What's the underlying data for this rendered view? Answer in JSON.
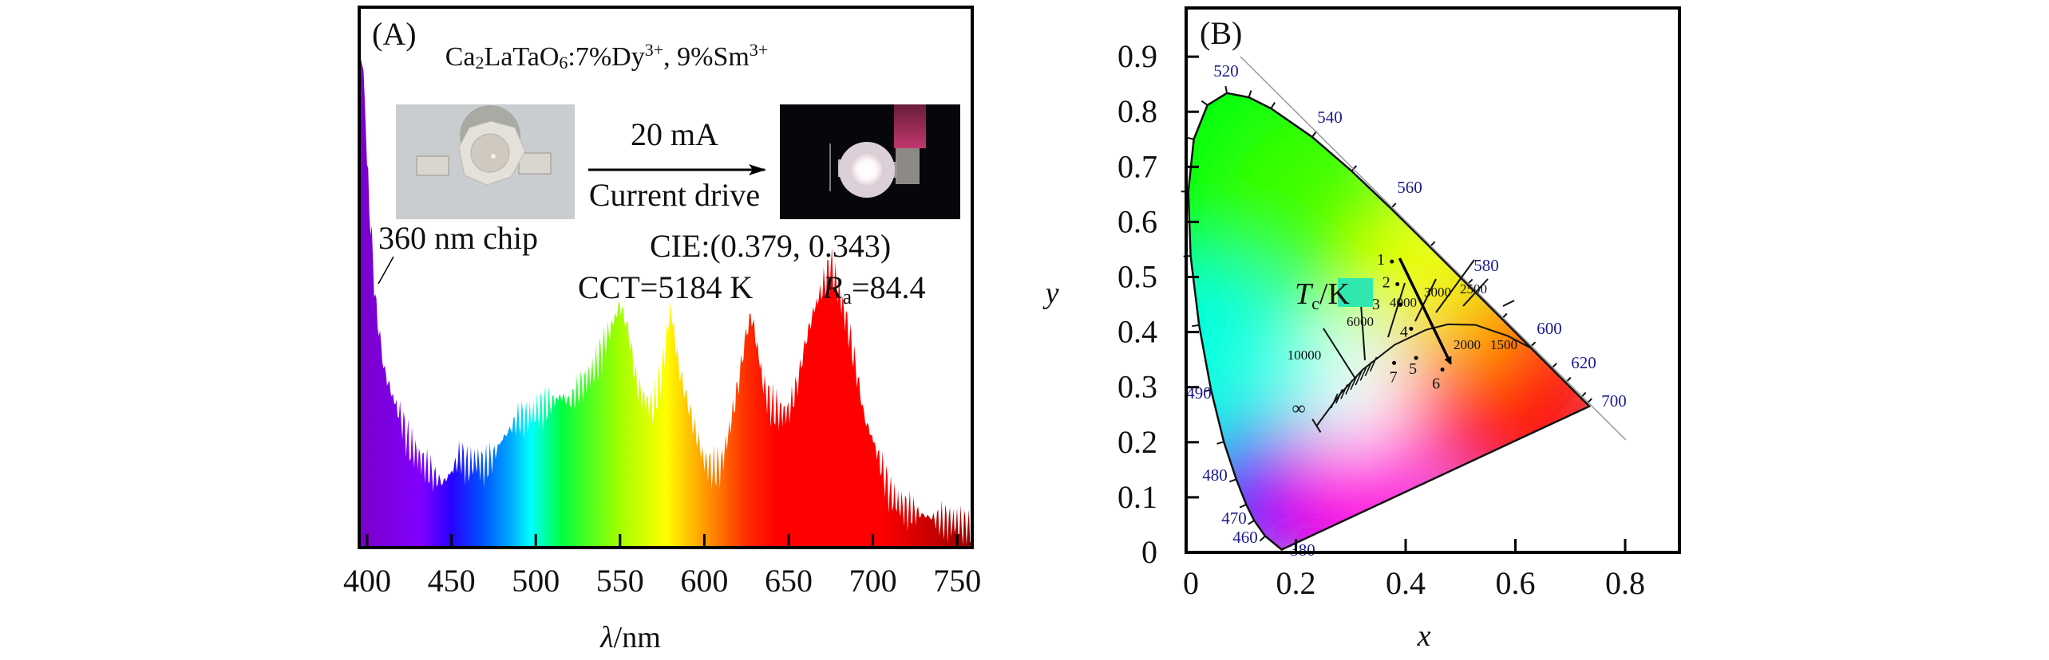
{
  "chart_data": [
    {
      "type": "area",
      "panel_label": "(A)",
      "title_parts": [
        "Ca",
        "2",
        "LaTaO",
        "6",
        ":7%Dy",
        "3+",
        ", 9%Sm",
        "3+"
      ],
      "xlabel_symbol": "λ",
      "xlabel_unit": "/nm",
      "ylabel": "",
      "xlim": [
        395,
        759
      ],
      "ylim": [
        0,
        1
      ],
      "xticks": [
        "400",
        "450",
        "500",
        "550",
        "600",
        "650",
        "700",
        "750"
      ],
      "x": [
        395,
        398,
        400,
        403,
        405,
        410,
        415,
        420,
        425,
        430,
        435,
        440,
        445,
        450,
        455,
        460,
        465,
        470,
        475,
        480,
        485,
        490,
        495,
        500,
        505,
        510,
        515,
        520,
        525,
        530,
        535,
        540,
        545,
        550,
        555,
        560,
        565,
        570,
        575,
        580,
        585,
        590,
        595,
        600,
        605,
        610,
        615,
        620,
        625,
        628,
        632,
        635,
        640,
        645,
        650,
        655,
        660,
        665,
        670,
        675,
        680,
        685,
        690,
        695,
        700,
        705,
        710,
        715,
        720,
        730,
        740,
        750,
        759
      ],
      "y": [
        0.92,
        0.88,
        0.7,
        0.55,
        0.45,
        0.33,
        0.28,
        0.24,
        0.19,
        0.17,
        0.15,
        0.13,
        0.12,
        0.14,
        0.17,
        0.15,
        0.16,
        0.15,
        0.17,
        0.2,
        0.22,
        0.24,
        0.24,
        0.25,
        0.26,
        0.27,
        0.28,
        0.27,
        0.29,
        0.31,
        0.33,
        0.37,
        0.41,
        0.45,
        0.4,
        0.3,
        0.27,
        0.26,
        0.33,
        0.445,
        0.33,
        0.27,
        0.21,
        0.16,
        0.145,
        0.15,
        0.22,
        0.3,
        0.4,
        0.43,
        0.36,
        0.3,
        0.26,
        0.25,
        0.25,
        0.3,
        0.38,
        0.44,
        0.48,
        0.52,
        0.47,
        0.41,
        0.33,
        0.24,
        0.2,
        0.15,
        0.1,
        0.08,
        0.07,
        0.06,
        0.05,
        0.045,
        0.03
      ],
      "annotations": {
        "chip": "360 nm chip",
        "current": "20 mA",
        "drive": "Current drive",
        "cie": "CIE:(0.379, 0.343)",
        "cct": "CCT=5184 K",
        "ra_symbol": "R",
        "ra_sub": "a",
        "ra_value": "=84.4"
      },
      "colors": {
        "violet": "#7a00c8",
        "blue": "#1a00ff",
        "cyan": "#00ffff",
        "green": "#00ff00",
        "yellow": "#ffff00",
        "orange": "#ff8000",
        "red": "#ff0000",
        "darkred": "#a00000"
      }
    },
    {
      "type": "scatter",
      "panel_label": "(B)",
      "xlabel": "x",
      "ylabel": "y",
      "xlim": [
        0,
        0.9
      ],
      "ylim": [
        0,
        0.95
      ],
      "xticks": [
        "0",
        "0.2",
        "0.4",
        "0.6",
        "0.8"
      ],
      "yticks": [
        "0",
        "0.1",
        "0.2",
        "0.3",
        "0.4",
        "0.5",
        "0.6",
        "0.7",
        "0.8",
        "0.9"
      ],
      "wavelength_labels": [
        "520",
        "540",
        "560",
        "580",
        "600",
        "620",
        "700",
        "490",
        "480",
        "470",
        "460",
        "380"
      ],
      "cct_labels": [
        "10000",
        "6000",
        "4000",
        "3000",
        "2500",
        "2000",
        "1500",
        "∞"
      ],
      "cct_axis_symbol": "T",
      "cct_axis_sub": "c",
      "cct_axis_unit": "/K",
      "points": [
        {
          "label": "1",
          "x": 0.375,
          "y": 0.528
        },
        {
          "label": "2",
          "x": 0.385,
          "y": 0.487
        },
        {
          "label": "3",
          "x": 0.391,
          "y": 0.45
        },
        {
          "label": "4",
          "x": 0.41,
          "y": 0.406
        },
        {
          "label": "5",
          "x": 0.419,
          "y": 0.353
        },
        {
          "label": "6",
          "x": 0.467,
          "y": 0.332
        },
        {
          "label": "7",
          "x": 0.379,
          "y": 0.344
        }
      ],
      "arrow": {
        "from": [
          0.389,
          0.534
        ],
        "to": [
          0.482,
          0.343
        ]
      },
      "colors": {
        "label_blue": "#1b1b8f",
        "tc_box": "#2ee8b0"
      }
    }
  ]
}
